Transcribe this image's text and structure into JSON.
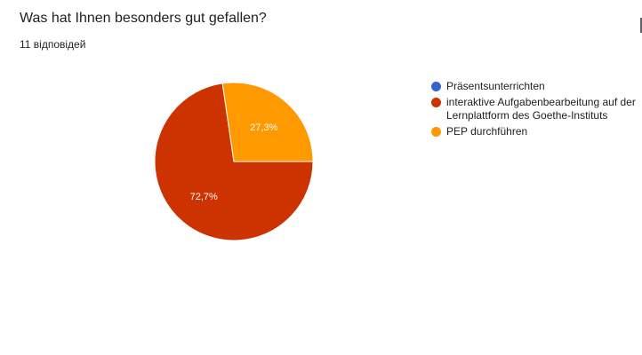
{
  "question": {
    "title": "Was hat Ihnen besonders gut gefallen?",
    "response_count": "11 відповідей"
  },
  "chart_data": {
    "type": "pie",
    "categories": [
      "Präsentsunterrichten",
      "interaktive Aufgabenbearbeitung auf der Lernplattform des Goethe-Instituts",
      "PEP durchführen"
    ],
    "values": [
      0,
      72.7,
      27.3
    ],
    "value_labels": [
      "",
      "72,7%",
      "27,3%"
    ],
    "colors": [
      "#3366cc",
      "#cc3300",
      "#ff9900"
    ],
    "legend_position": "right"
  }
}
